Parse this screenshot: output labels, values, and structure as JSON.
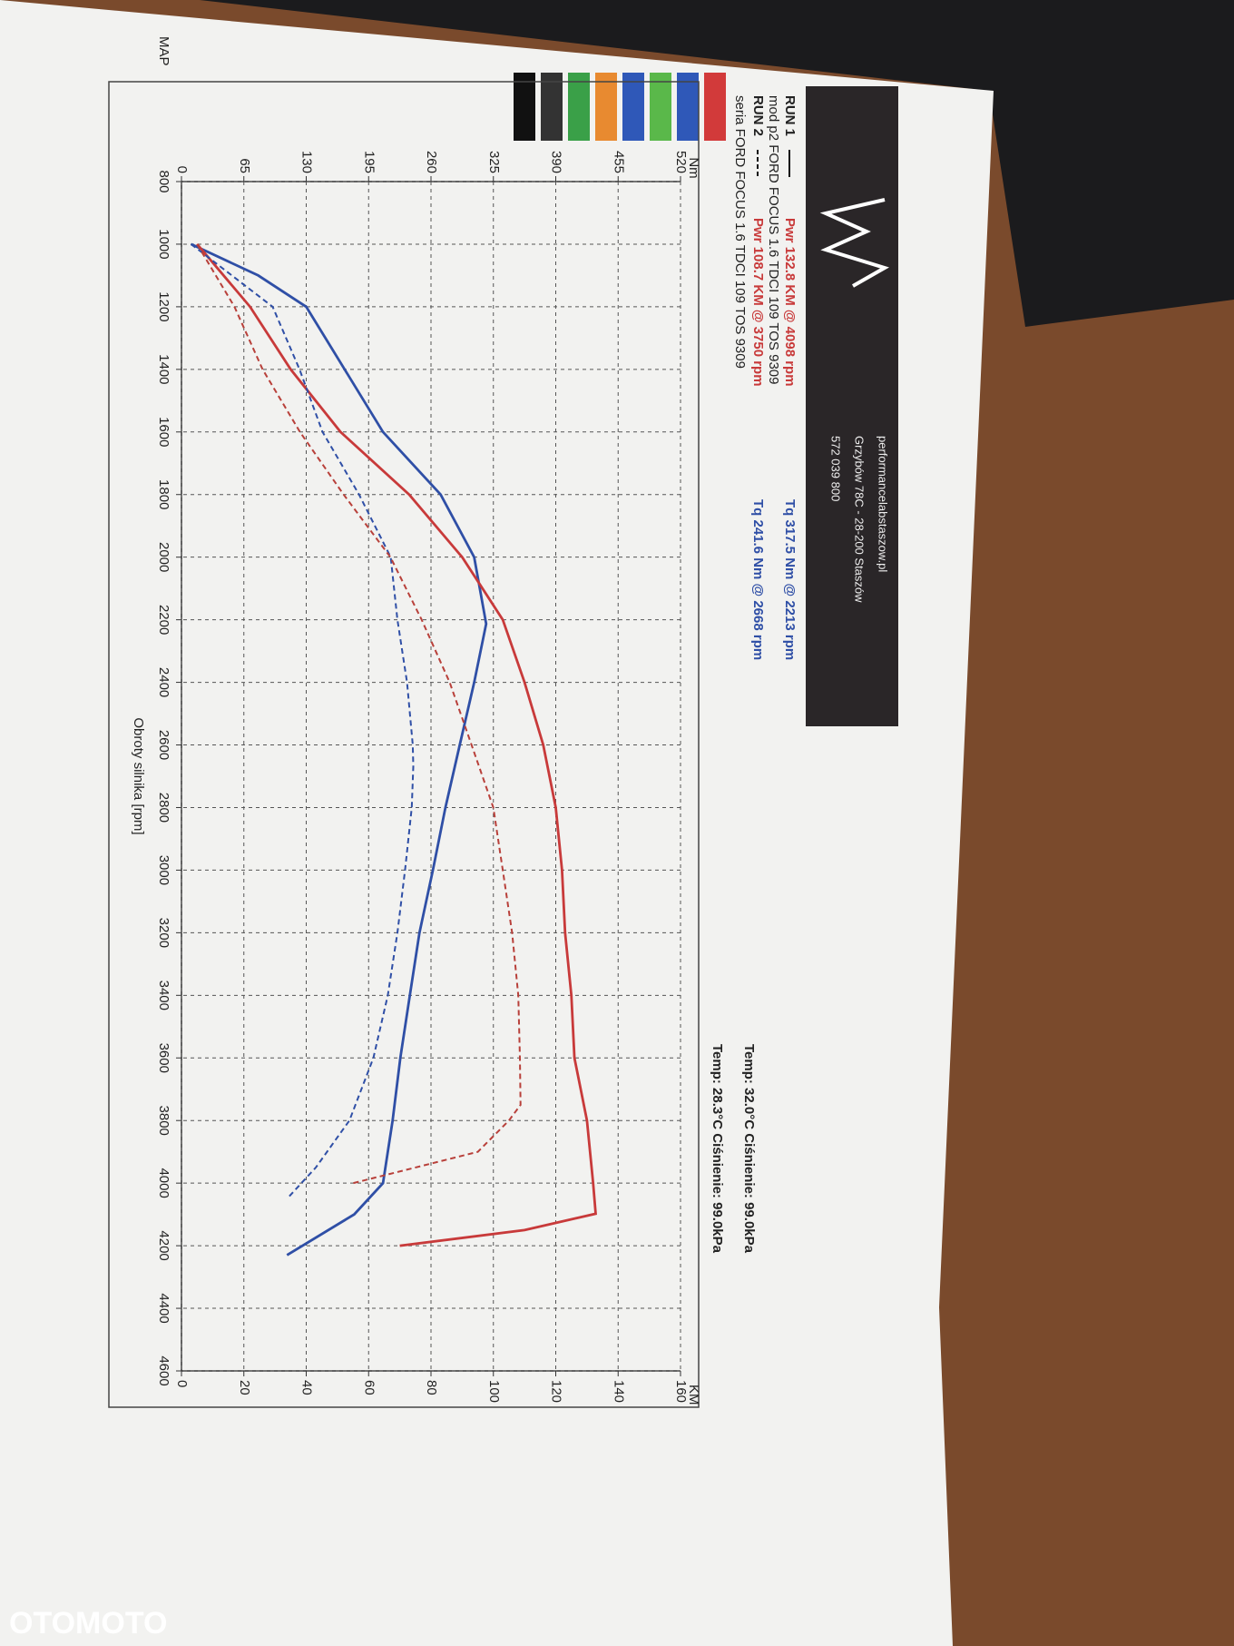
{
  "header": {
    "website": "performancelabstaszow.pl",
    "address": "Grzybów 78C - 28-200 Staszów",
    "phone": "572 039 800"
  },
  "runs": [
    {
      "label": "RUN 1",
      "power": "Pwr 132.8 KM @ 4098 rpm",
      "torque": "Tq 317.5 Nm @ 2213 rpm",
      "vehicle": "mod p2 FORD FOCUS 1.6 TDCI 109 TOS 9309",
      "conditions": "Temp: 32.0°C  Ciśnienie: 99.0kPa"
    },
    {
      "label": "RUN 2",
      "power": "Pwr 108.7 KM @ 3750 rpm",
      "torque": "Tq 241.6 Nm @ 2668 rpm",
      "vehicle": "seria FORD FOCUS 1.6 TDCI 109 TOS 9309",
      "conditions": "Temp: 28.3°C  Ciśnienie: 99.0kPa"
    }
  ],
  "legend_panel": {
    "map": "MAP"
  },
  "watermark": "OTOMOTO",
  "chart_data": {
    "type": "line",
    "xlabel": "Obroty silnika [rpm]",
    "ylabel": "Nm",
    "y2label": "KM",
    "xlim": [
      800,
      4600
    ],
    "xticks": [
      800,
      1000,
      1200,
      1400,
      1600,
      1800,
      2000,
      2200,
      2400,
      2600,
      2800,
      3000,
      3200,
      3400,
      3600,
      3800,
      4000,
      4200,
      4400,
      4600
    ],
    "ylim": [
      0,
      520
    ],
    "yticks": [
      0,
      65,
      130,
      195,
      260,
      325,
      390,
      455,
      520
    ],
    "y2lim": [
      0,
      160
    ],
    "y2ticks": [
      0,
      20,
      40,
      60,
      80,
      100,
      120,
      140,
      160
    ],
    "grid": true,
    "series": [
      {
        "color": "#2f4fa6",
        "dashed": false,
        "x": [
          1000,
          1100,
          1200,
          1400,
          1600,
          1800,
          2000,
          2213,
          2400,
          2600,
          2800,
          3000,
          3200,
          3400,
          3600,
          3800,
          4000,
          4100,
          4230
        ],
        "values": [
          10,
          80,
          130,
          170,
          210,
          270,
          305,
          317.5,
          305,
          290,
          275,
          262,
          248,
          238,
          228,
          220,
          210,
          180,
          110
        ]
      },
      {
        "color": "#c83a3a",
        "dashed": false,
        "axis": "y2",
        "x": [
          1000,
          1200,
          1400,
          1600,
          1800,
          2000,
          2200,
          2400,
          2600,
          2800,
          3000,
          3200,
          3400,
          3600,
          3800,
          4000,
          4098,
          4150,
          4200
        ],
        "values": [
          5,
          22,
          35,
          51,
          73,
          90,
          103,
          110,
          116,
          120,
          122,
          123,
          125,
          126,
          130,
          132,
          132.8,
          110,
          70
        ]
      },
      {
        "color": "#2f4fa6",
        "dashed": true,
        "x": [
          1000,
          1200,
          1400,
          1600,
          1800,
          2000,
          2200,
          2400,
          2600,
          2668,
          2800,
          3000,
          3200,
          3400,
          3600,
          3800,
          3950,
          4050
        ],
        "values": [
          10,
          95,
          123,
          147,
          185,
          218,
          225,
          235,
          241,
          241.6,
          240,
          233,
          225,
          215,
          200,
          175,
          140,
          110
        ]
      },
      {
        "color": "#b8403a",
        "dashed": true,
        "axis": "y2",
        "x": [
          1000,
          1200,
          1400,
          1600,
          1800,
          2000,
          2200,
          2400,
          2600,
          2800,
          3000,
          3200,
          3400,
          3600,
          3750,
          3800,
          3900,
          4000
        ],
        "values": [
          5,
          17,
          26,
          38,
          52,
          67,
          77,
          86,
          93,
          100,
          103,
          106,
          108,
          108.5,
          108.7,
          105,
          95,
          55
        ]
      }
    ]
  }
}
